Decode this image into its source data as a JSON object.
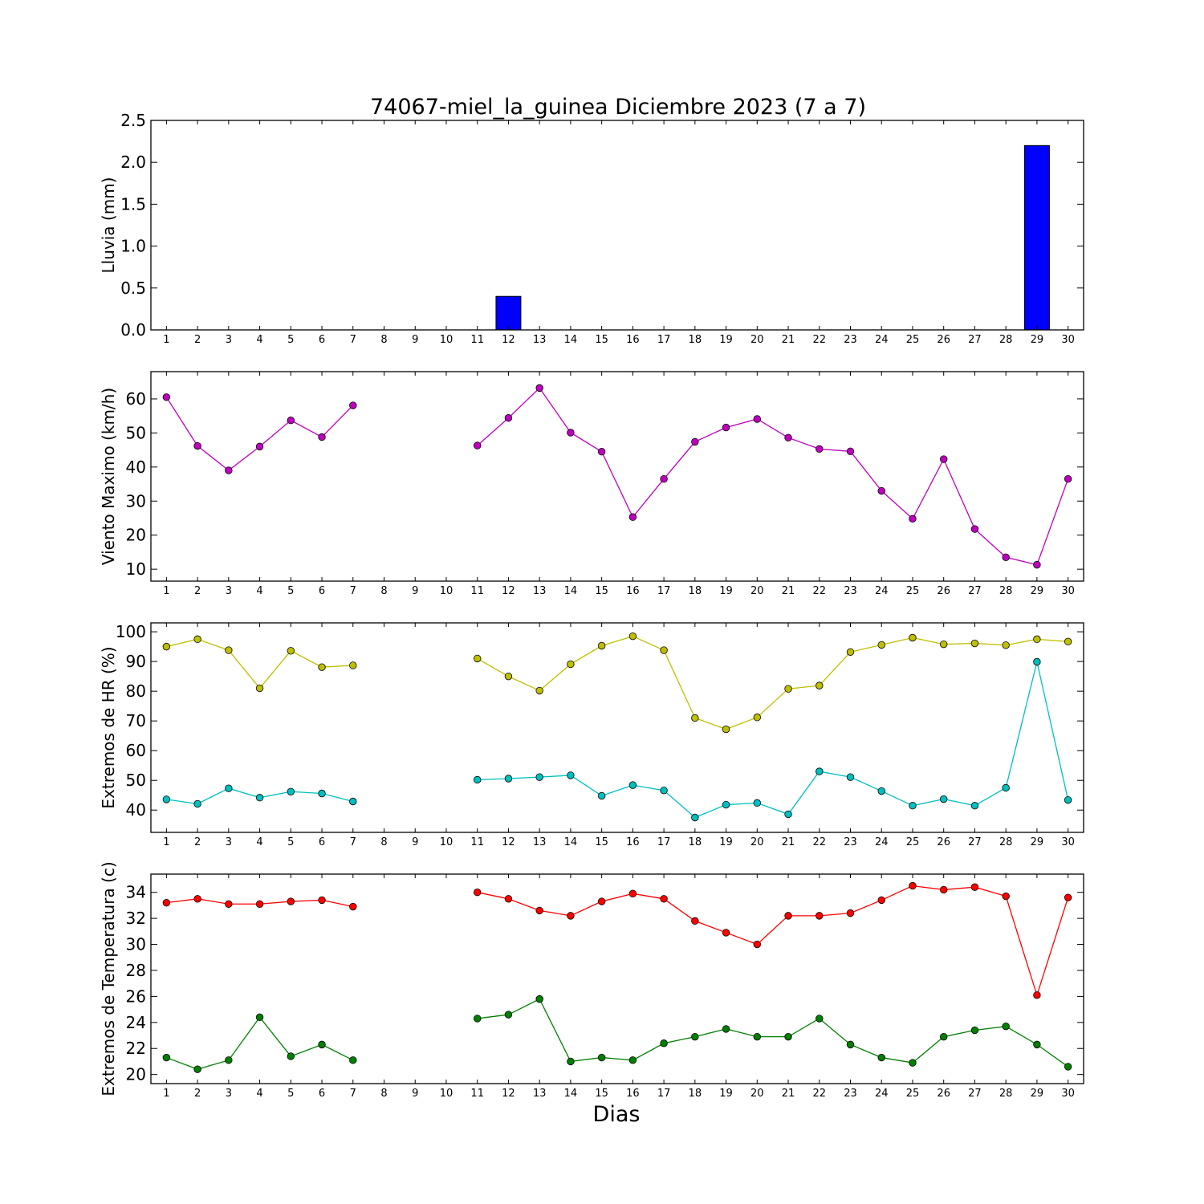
{
  "chart_data": {
    "title": "74067-miel_la_guinea Diciembre 2023  (7 a 7)",
    "xlabel": "Dias",
    "x": [
      1,
      2,
      3,
      4,
      5,
      6,
      7,
      8,
      9,
      10,
      11,
      12,
      13,
      14,
      15,
      16,
      17,
      18,
      19,
      20,
      21,
      22,
      23,
      24,
      25,
      26,
      27,
      28,
      29,
      30
    ],
    "panels": [
      {
        "type": "bar",
        "ylabel": "Lluvia (mm)",
        "ylim": [
          0,
          2.5
        ],
        "yticks": [
          "0.0",
          "0.5",
          "1.0",
          "1.5",
          "2.0",
          "2.5"
        ],
        "series": [
          {
            "color": "#0000ff",
            "values": [
              0,
              0,
              0,
              0,
              0,
              0,
              0,
              null,
              null,
              null,
              0,
              0.4,
              0,
              0,
              0,
              0,
              0,
              0,
              0,
              0,
              0,
              0,
              0,
              0,
              0,
              0,
              0,
              0,
              2.2,
              0
            ]
          }
        ]
      },
      {
        "type": "line",
        "ylabel": "Viento Maximo (km/h)",
        "ylim": [
          6.5,
          68
        ],
        "yticks": [
          "10",
          "20",
          "30",
          "40",
          "50",
          "60"
        ],
        "series": [
          {
            "color": "#bf00bf",
            "values": [
              60.5,
              46.2,
              39,
              46,
              53.7,
              48.8,
              58.1,
              null,
              null,
              null,
              46.3,
              54.4,
              63.2,
              50.1,
              44.5,
              25.3,
              36.5,
              47.4,
              51.6,
              54.1,
              48.6,
              45.3,
              44.6,
              33,
              24.8,
              42.3,
              21.8,
              13.5,
              11.3,
              36.5
            ]
          }
        ]
      },
      {
        "type": "line",
        "ylabel": "Extremos de HR (%)",
        "ylim": [
          32.5,
          103
        ],
        "yticks": [
          "40",
          "50",
          "60",
          "70",
          "80",
          "90",
          "100"
        ],
        "series": [
          {
            "color": "#bfbf00",
            "values": [
              95,
              97.5,
              93.8,
              81,
              93.6,
              88.1,
              88.7,
              null,
              null,
              null,
              91,
              85,
              80.2,
              89.1,
              95.3,
              98.5,
              93.8,
              71,
              67.2,
              71.2,
              80.8,
              81.9,
              93.2,
              95.6,
              98,
              95.8,
              96.1,
              95.5,
              97.5,
              96.7
            ]
          },
          {
            "color": "#00bfbf",
            "values": [
              43.6,
              42.1,
              47.3,
              44.2,
              46.2,
              45.6,
              42.9,
              null,
              null,
              null,
              50.2,
              50.6,
              51.1,
              51.7,
              44.8,
              48.4,
              46.6,
              37.5,
              41.8,
              42.4,
              38.6,
              53,
              51.1,
              46.4,
              41.5,
              43.7,
              41.5,
              47.5,
              89.9,
              43.4
            ]
          }
        ]
      },
      {
        "type": "line",
        "ylabel": "Extremos de Temperatura (c)",
        "ylim": [
          19.3,
          35.4
        ],
        "yticks": [
          "20",
          "22",
          "24",
          "26",
          "28",
          "30",
          "32",
          "34"
        ],
        "series": [
          {
            "color": "#ff0000",
            "values": [
              33.2,
              33.5,
              33.1,
              33.1,
              33.3,
              33.4,
              32.9,
              null,
              null,
              null,
              34,
              33.5,
              32.6,
              32.2,
              33.3,
              33.9,
              33.5,
              31.8,
              30.9,
              30,
              32.2,
              32.2,
              32.4,
              33.4,
              34.5,
              34.2,
              34.4,
              33.7,
              26.1,
              33.6
            ]
          },
          {
            "color": "#008000",
            "values": [
              21.3,
              20.4,
              21.1,
              24.4,
              21.4,
              22.3,
              21.1,
              null,
              null,
              null,
              24.3,
              24.6,
              25.8,
              21,
              21.3,
              21.1,
              22.4,
              22.9,
              23.5,
              22.9,
              22.9,
              24.3,
              22.3,
              21.3,
              20.9,
              22.9,
              23.4,
              23.7,
              22.3,
              20.6
            ]
          }
        ]
      }
    ]
  }
}
